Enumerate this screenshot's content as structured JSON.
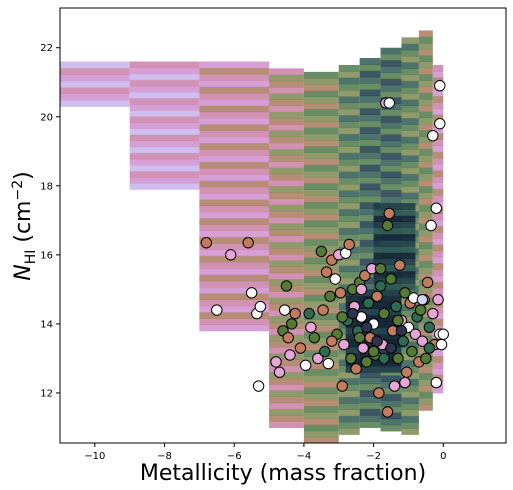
{
  "chart_data": {
    "type": "scatter",
    "title": "",
    "xlabel": "Metallicity (mass fraction)",
    "ylabel_main": "N",
    "ylabel_sub": "HI",
    "ylabel_units": " (cm",
    "ylabel_units_sup": "−2",
    "ylabel_units_close": ")",
    "xlim": [
      -11.0,
      1.8
    ],
    "ylim": [
      10.55,
      23.15
    ],
    "x_ticks": [
      -10,
      -8,
      -6,
      -4,
      -2,
      0
    ],
    "x_tick_labels": [
      "−10",
      "−8",
      "−6",
      "−4",
      "−2",
      "0"
    ],
    "y_ticks": [
      12,
      14,
      16,
      18,
      20,
      22
    ],
    "y_tick_labels": [
      "12",
      "14",
      "16",
      "18",
      "20",
      "22"
    ],
    "grid": false,
    "background_colors": [
      "#d6f0ea",
      "#c5d4ef",
      "#c5b4ec",
      "#cf8fd0",
      "#c97fa6",
      "#a97a5d",
      "#7c8a52",
      "#4f7a4a",
      "#2e5a52",
      "#1a3a48",
      "#0f1f33"
    ],
    "point_colors": [
      "#ffffff",
      "#e8a6d8",
      "#c27b5e",
      "#557a36",
      "#2f6a52",
      "#d0d4f0",
      "#2e3350"
    ],
    "background_density": [
      {
        "xmin": -11.0,
        "xmax": -9.0,
        "ymin": 20.3,
        "ymax": 21.6,
        "level": 3
      },
      {
        "xmin": -9.0,
        "xmax": -7.0,
        "ymin": 17.9,
        "ymax": 21.6,
        "level": 3
      },
      {
        "xmin": -7.0,
        "xmax": -5.0,
        "ymin": 13.8,
        "ymax": 21.6,
        "level": 4
      },
      {
        "xmin": -5.0,
        "xmax": -4.0,
        "ymin": 11.0,
        "ymax": 21.4,
        "level": 5
      },
      {
        "xmin": -4.0,
        "xmax": -3.0,
        "ymin": 10.55,
        "ymax": 21.3,
        "level": 6
      },
      {
        "xmin": -3.0,
        "xmax": -2.4,
        "ymin": 10.8,
        "ymax": 21.5,
        "level": 7
      },
      {
        "xmin": -2.4,
        "xmax": -1.8,
        "ymin": 11.0,
        "ymax": 21.7,
        "level": 8
      },
      {
        "xmin": -1.8,
        "xmax": -1.2,
        "ymin": 10.9,
        "ymax": 22.0,
        "level": 8
      },
      {
        "xmin": -1.2,
        "xmax": -0.7,
        "ymin": 10.8,
        "ymax": 22.3,
        "level": 7
      },
      {
        "xmin": -0.7,
        "xmax": -0.3,
        "ymin": 11.5,
        "ymax": 22.5,
        "level": 6
      },
      {
        "xmin": -0.3,
        "xmax": 0.0,
        "ymin": 12.0,
        "ymax": 21.5,
        "level": 4
      },
      {
        "xmin": -2.8,
        "xmax": -1.2,
        "ymin": 12.6,
        "ymax": 15.0,
        "level": 10
      },
      {
        "xmin": -2.0,
        "xmax": -0.8,
        "ymin": 15.0,
        "ymax": 17.5,
        "level": 9
      }
    ],
    "points": [
      {
        "x": -6.8,
        "y": 16.35,
        "c": 2
      },
      {
        "x": -6.5,
        "y": 14.4,
        "c": 0
      },
      {
        "x": -6.1,
        "y": 16.0,
        "c": 1
      },
      {
        "x": -5.6,
        "y": 16.35,
        "c": 2
      },
      {
        "x": -5.5,
        "y": 14.9,
        "c": 0
      },
      {
        "x": -5.35,
        "y": 14.3,
        "c": 0
      },
      {
        "x": -5.25,
        "y": 14.5,
        "c": 0
      },
      {
        "x": -5.3,
        "y": 12.2,
        "c": 0
      },
      {
        "x": -4.8,
        "y": 12.9,
        "c": 1
      },
      {
        "x": -4.7,
        "y": 12.6,
        "c": 1
      },
      {
        "x": -4.6,
        "y": 13.8,
        "c": 3
      },
      {
        "x": -4.55,
        "y": 14.4,
        "c": 0
      },
      {
        "x": -4.45,
        "y": 13.6,
        "c": 2
      },
      {
        "x": -4.5,
        "y": 15.1,
        "c": 3
      },
      {
        "x": -4.4,
        "y": 13.1,
        "c": 1
      },
      {
        "x": -4.35,
        "y": 14.0,
        "c": 3
      },
      {
        "x": -4.25,
        "y": 14.3,
        "c": 2
      },
      {
        "x": -4.1,
        "y": 13.3,
        "c": 2
      },
      {
        "x": -3.95,
        "y": 12.8,
        "c": 0
      },
      {
        "x": -3.85,
        "y": 14.3,
        "c": 4
      },
      {
        "x": -3.8,
        "y": 13.9,
        "c": 1
      },
      {
        "x": -3.7,
        "y": 13.6,
        "c": 3
      },
      {
        "x": -3.6,
        "y": 13.0,
        "c": 1
      },
      {
        "x": -3.5,
        "y": 16.1,
        "c": 3
      },
      {
        "x": -3.45,
        "y": 14.4,
        "c": 2
      },
      {
        "x": -3.4,
        "y": 13.2,
        "c": 4
      },
      {
        "x": -3.35,
        "y": 15.5,
        "c": 2
      },
      {
        "x": -3.3,
        "y": 12.85,
        "c": 0
      },
      {
        "x": -3.25,
        "y": 14.8,
        "c": 3
      },
      {
        "x": -3.2,
        "y": 15.85,
        "c": 2
      },
      {
        "x": -3.1,
        "y": 15.3,
        "c": 0
      },
      {
        "x": -3.05,
        "y": 13.7,
        "c": 3
      },
      {
        "x": -3.0,
        "y": 16.0,
        "c": 1
      },
      {
        "x": -2.95,
        "y": 14.9,
        "c": 2
      },
      {
        "x": -2.9,
        "y": 12.2,
        "c": 2
      },
      {
        "x": -2.85,
        "y": 13.4,
        "c": 1
      },
      {
        "x": -2.8,
        "y": 16.05,
        "c": 0
      },
      {
        "x": -2.75,
        "y": 14.1,
        "c": 4
      },
      {
        "x": -2.7,
        "y": 16.3,
        "c": 2
      },
      {
        "x": -2.65,
        "y": 13.0,
        "c": 3
      },
      {
        "x": -2.6,
        "y": 15.0,
        "c": 3
      },
      {
        "x": -2.55,
        "y": 14.5,
        "c": 1
      },
      {
        "x": -2.5,
        "y": 12.7,
        "c": 2
      },
      {
        "x": -2.45,
        "y": 13.8,
        "c": 4
      },
      {
        "x": -2.4,
        "y": 15.2,
        "c": 3
      },
      {
        "x": -2.35,
        "y": 14.2,
        "c": 0
      },
      {
        "x": -2.3,
        "y": 13.3,
        "c": 1
      },
      {
        "x": -2.25,
        "y": 15.4,
        "c": 2
      },
      {
        "x": -2.2,
        "y": 12.9,
        "c": 3
      },
      {
        "x": -2.15,
        "y": 14.6,
        "c": 4
      },
      {
        "x": -2.1,
        "y": 13.6,
        "c": 2
      },
      {
        "x": -2.05,
        "y": 15.6,
        "c": 1
      },
      {
        "x": -2.0,
        "y": 14.0,
        "c": 0
      },
      {
        "x": -1.95,
        "y": 13.1,
        "c": 3
      },
      {
        "x": -1.9,
        "y": 14.8,
        "c": 2
      },
      {
        "x": -1.85,
        "y": 12.0,
        "c": 2
      },
      {
        "x": -1.8,
        "y": 15.1,
        "c": 4
      },
      {
        "x": -1.75,
        "y": 13.4,
        "c": 1
      },
      {
        "x": -1.7,
        "y": 14.3,
        "c": 3
      },
      {
        "x": -1.65,
        "y": 20.4,
        "c": 1
      },
      {
        "x": -1.55,
        "y": 20.4,
        "c": 0
      },
      {
        "x": -1.6,
        "y": 16.85,
        "c": 3
      },
      {
        "x": -1.55,
        "y": 17.2,
        "c": 2
      },
      {
        "x": -1.5,
        "y": 15.3,
        "c": 3
      },
      {
        "x": -1.45,
        "y": 13.8,
        "c": 2
      },
      {
        "x": -1.4,
        "y": 12.2,
        "c": 1
      },
      {
        "x": -1.35,
        "y": 14.5,
        "c": 4
      },
      {
        "x": -1.3,
        "y": 13.0,
        "c": 3
      },
      {
        "x": -1.25,
        "y": 15.7,
        "c": 2
      },
      {
        "x": -1.2,
        "y": 14.1,
        "c": 1
      },
      {
        "x": -1.15,
        "y": 13.5,
        "c": 4
      },
      {
        "x": -1.1,
        "y": 14.9,
        "c": 3
      },
      {
        "x": -1.05,
        "y": 12.6,
        "c": 2
      },
      {
        "x": -1.0,
        "y": 13.9,
        "c": 0
      },
      {
        "x": -0.95,
        "y": 14.6,
        "c": 2
      },
      {
        "x": -0.9,
        "y": 13.2,
        "c": 3
      },
      {
        "x": -0.85,
        "y": 14.75,
        "c": 0
      },
      {
        "x": -0.8,
        "y": 13.7,
        "c": 1
      },
      {
        "x": -0.75,
        "y": 14.2,
        "c": 4
      },
      {
        "x": -0.7,
        "y": 12.9,
        "c": 2
      },
      {
        "x": -0.65,
        "y": 14.4,
        "c": 3
      },
      {
        "x": -0.6,
        "y": 13.5,
        "c": 1
      },
      {
        "x": -0.55,
        "y": 14.7,
        "c": 2
      },
      {
        "x": -0.5,
        "y": 13.0,
        "c": 3
      },
      {
        "x": -0.45,
        "y": 15.2,
        "c": 2
      },
      {
        "x": -0.4,
        "y": 13.9,
        "c": 4
      },
      {
        "x": -0.35,
        "y": 16.85,
        "c": 0
      },
      {
        "x": -0.3,
        "y": 14.3,
        "c": 1
      },
      {
        "x": -0.3,
        "y": 19.45,
        "c": 0
      },
      {
        "x": -0.25,
        "y": 13.4,
        "c": 2
      },
      {
        "x": -0.2,
        "y": 12.3,
        "c": 0
      },
      {
        "x": -0.2,
        "y": 17.35,
        "c": 0
      },
      {
        "x": -0.15,
        "y": 14.7,
        "c": 1
      },
      {
        "x": -0.1,
        "y": 13.7,
        "c": 0
      },
      {
        "x": -0.1,
        "y": 19.8,
        "c": 0
      },
      {
        "x": -0.1,
        "y": 20.9,
        "c": 0
      },
      {
        "x": -0.05,
        "y": 13.4,
        "c": 0
      },
      {
        "x": 0.0,
        "y": 13.7,
        "c": 0
      },
      {
        "x": -2.6,
        "y": 14.3,
        "c": 6
      },
      {
        "x": -2.2,
        "y": 13.9,
        "c": 6
      },
      {
        "x": -1.9,
        "y": 13.5,
        "c": 6
      },
      {
        "x": -1.5,
        "y": 13.3,
        "c": 6
      },
      {
        "x": -1.2,
        "y": 13.8,
        "c": 6
      },
      {
        "x": -2.4,
        "y": 13.6,
        "c": 3
      },
      {
        "x": -2.0,
        "y": 13.2,
        "c": 3
      },
      {
        "x": -1.7,
        "y": 13.0,
        "c": 4
      },
      {
        "x": -1.3,
        "y": 14.1,
        "c": 3
      },
      {
        "x": -2.9,
        "y": 14.2,
        "c": 3
      },
      {
        "x": -3.2,
        "y": 13.5,
        "c": 2
      },
      {
        "x": -1.1,
        "y": 12.3,
        "c": 1
      },
      {
        "x": -0.6,
        "y": 14.7,
        "c": 5
      },
      {
        "x": -0.4,
        "y": 13.3,
        "c": 4
      },
      {
        "x": -2.35,
        "y": 15.0,
        "c": 1
      },
      {
        "x": -1.6,
        "y": 11.45,
        "c": 2
      },
      {
        "x": -1.8,
        "y": 15.6,
        "c": 3
      }
    ]
  }
}
